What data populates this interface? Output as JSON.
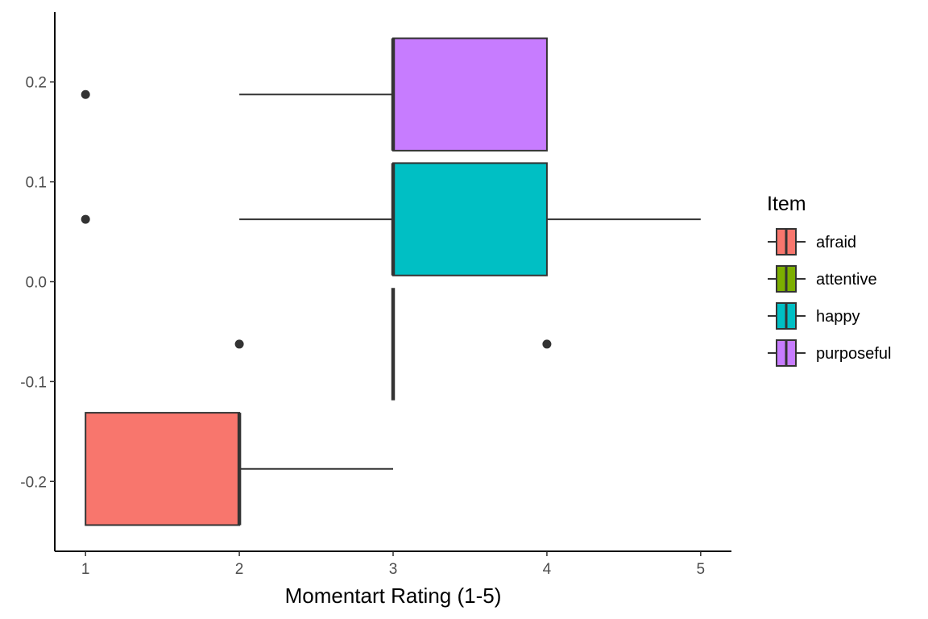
{
  "chart_data": {
    "type": "boxplot",
    "orientation": "horizontal",
    "xlabel": "Momentart Rating (1-5)",
    "ylabel": "",
    "xlim": [
      0.8,
      5.2
    ],
    "ylim": [
      -0.27,
      0.27
    ],
    "x_ticks": [
      "1",
      "2",
      "3",
      "4",
      "5"
    ],
    "y_ticks": [
      "0.2",
      "0.1",
      "0.0",
      "-0.1",
      "-0.2"
    ],
    "grid": false,
    "legend": {
      "title": "Item",
      "position": "right",
      "items": [
        "afraid",
        "attentive",
        "happy",
        "purposeful"
      ]
    },
    "series": [
      {
        "name": "afraid",
        "color": "#F8766D",
        "y_center": -0.1875,
        "y_halfwidth": 0.05625,
        "whisker_low": 1,
        "q1": 1,
        "median": 2,
        "q3": 2,
        "whisker_high": 3,
        "outliers": []
      },
      {
        "name": "attentive",
        "color": "#7CAE00",
        "y_center": -0.0625,
        "y_halfwidth": 0.05625,
        "whisker_low": 3,
        "q1": 3,
        "median": 3,
        "q3": 3,
        "whisker_high": 3,
        "outliers": [
          2,
          4
        ]
      },
      {
        "name": "happy",
        "color": "#00BFC4",
        "y_center": 0.0625,
        "y_halfwidth": 0.05625,
        "whisker_low": 2,
        "q1": 3,
        "median": 3,
        "q3": 4,
        "whisker_high": 5,
        "outliers": [
          1
        ]
      },
      {
        "name": "purposeful",
        "color": "#C77CFF",
        "y_center": 0.1875,
        "y_halfwidth": 0.05625,
        "whisker_low": 2,
        "q1": 3,
        "median": 3,
        "q3": 4,
        "whisker_high": 4,
        "outliers": [
          1
        ]
      }
    ]
  }
}
